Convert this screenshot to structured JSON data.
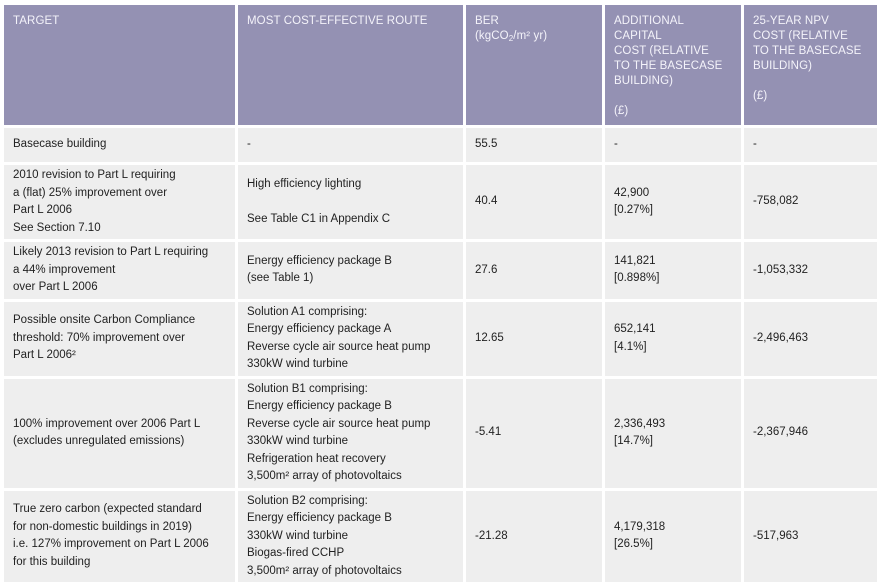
{
  "table": {
    "headers": {
      "target": "TARGET",
      "route": "MOST COST-EFFECTIVE ROUTE",
      "ber_line1": "BER",
      "ber_line2_pre": "(kgCO",
      "ber_line2_sub": "2",
      "ber_line2_post": "/m² yr)",
      "capital_l1": "ADDITIONAL CAPITAL",
      "capital_l2": "COST (RELATIVE",
      "capital_l3": "TO THE BASECASE",
      "capital_l4": "BUILDING)",
      "capital_unit": "(£)",
      "npv_l1": "25-YEAR NPV",
      "npv_l2": "COST (RELATIVE",
      "npv_l3": "TO THE BASECASE",
      "npv_l4": "BUILDING)",
      "npv_unit": "(£)"
    },
    "rows": [
      {
        "target": [
          "Basecase building"
        ],
        "route": [
          "-"
        ],
        "ber": "55.5",
        "capital": [
          "-"
        ],
        "npv": "-"
      },
      {
        "target": [
          "2010 revision to Part L requiring",
          "a (flat) 25% improvement over",
          "Part L 2006",
          "See Section 7.10"
        ],
        "route": [
          "High efficiency lighting",
          "",
          "See Table C1 in Appendix C"
        ],
        "ber": "40.4",
        "capital": [
          "42,900",
          "[0.27%]"
        ],
        "npv": "-758,082"
      },
      {
        "target": [
          "Likely 2013 revision to Part L requiring",
          "a 44% improvement",
          "over Part L 2006"
        ],
        "route": [
          "Energy efficiency package B",
          "(see Table 1)"
        ],
        "ber": "27.6",
        "capital": [
          "141,821",
          "[0.898%]"
        ],
        "npv": "-1,053,332"
      },
      {
        "target": [
          "Possible onsite Carbon Compliance",
          "threshold: 70% improvement over",
          "Part L 2006²"
        ],
        "route": [
          "Solution A1 comprising:",
          "Energy efficiency package A",
          "Reverse cycle air source heat pump",
          "330kW wind turbine"
        ],
        "ber": "12.65",
        "capital": [
          "652,141",
          "[4.1%]"
        ],
        "npv": "-2,496,463"
      },
      {
        "target": [
          "100% improvement over 2006 Part L",
          "(excludes unregulated emissions)"
        ],
        "route": [
          "Solution B1 comprising:",
          "Energy efficiency package B",
          "Reverse cycle air source heat pump",
          "330kW wind turbine",
          "Refrigeration heat recovery",
          "3,500m² array of photovoltaics"
        ],
        "ber": "-5.41",
        "capital": [
          "2,336,493",
          "[14.7%]"
        ],
        "npv": "-2,367,946"
      },
      {
        "target": [
          "True zero carbon (expected standard",
          "for non-domestic buildings in 2019)",
          "i.e. 127% improvement on Part L 2006",
          "for this building"
        ],
        "route": [
          "Solution B2 comprising:",
          "Energy efficiency package B",
          "330kW wind turbine",
          "Biogas-fired CCHP",
          "3,500m² array of photovoltaics"
        ],
        "ber": "-21.28",
        "capital": [
          "4,179,318",
          "[26.5%]"
        ],
        "npv": "-517,963"
      }
    ]
  }
}
